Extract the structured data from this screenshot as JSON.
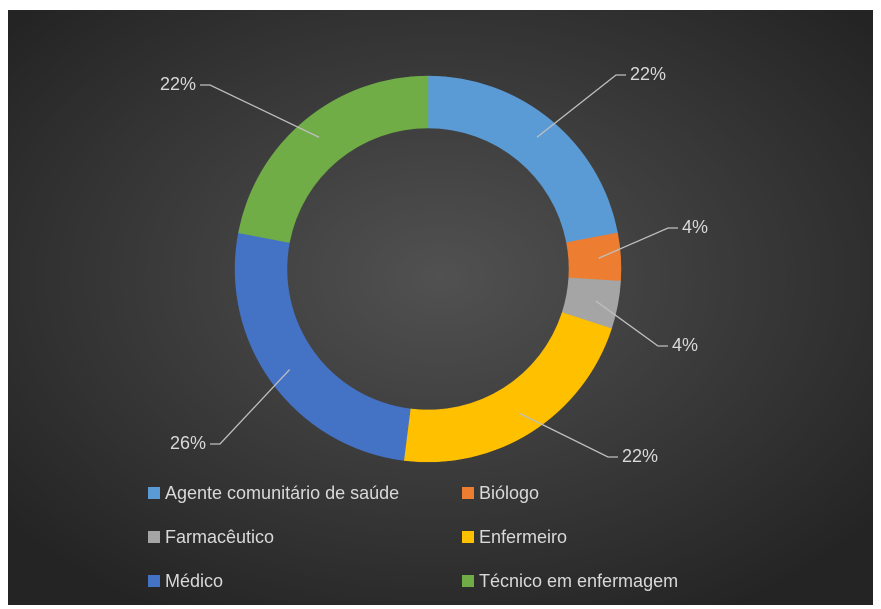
{
  "chart_data": {
    "type": "donut",
    "categories": [
      "Agente comunitário de saúde",
      "Biólogo",
      "Farmacêutico",
      "Enfermeiro",
      "Médico",
      "Técnico em enfermagem"
    ],
    "values": [
      22,
      4,
      4,
      22,
      26,
      22
    ],
    "value_labels": [
      "22%",
      "4%",
      "4%",
      "22%",
      "26%",
      "22%"
    ],
    "colors": [
      "#5b9bd5",
      "#ed7d31",
      "#a5a5a5",
      "#ffc000",
      "#4472c4",
      "#70ad47"
    ],
    "legend": "bottom"
  }
}
